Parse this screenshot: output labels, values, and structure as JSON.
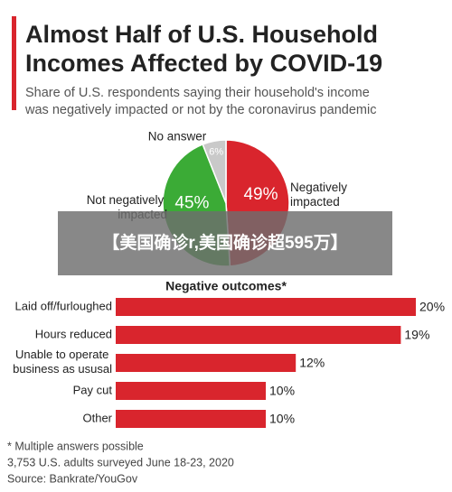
{
  "chart_data": [
    {
      "type": "pie",
      "title": [
        "Almost Half of U.S. Household",
        "Incomes Affected by COVID-19"
      ],
      "subtitle": [
        "Share of U.S. respondents saying their household's income",
        "was negatively impacted or not by the coronavirus pandemic"
      ],
      "categories": [
        "Negatively impacted",
        "Not negatively impacted",
        "No answer"
      ],
      "values": [
        49,
        45,
        6
      ],
      "value_labels": [
        "49%",
        "45%",
        "6%"
      ],
      "colors": [
        "#d9252d",
        "#3bab36",
        "#c9c9c9"
      ]
    },
    {
      "type": "bar",
      "orientation": "horizontal",
      "title": "Negative outcomes*",
      "categories": [
        "Laid off/furloughed",
        "Hours reduced",
        "Unable to operate business as ususal",
        "Pay cut",
        "Other"
      ],
      "values": [
        20,
        19,
        12,
        10,
        10
      ],
      "value_labels": [
        "20%",
        "19%",
        "12%",
        "10%",
        "10%"
      ],
      "color": "#d9252d",
      "xlim": [
        0,
        20
      ]
    }
  ],
  "footnotes": [
    "* Multiple answers possible",
    "3,753 U.S. adults surveyed June 18-23, 2020",
    "Source: Bankrate/YouGov"
  ],
  "banner": "【美国确诊r,美国确诊超595万】"
}
